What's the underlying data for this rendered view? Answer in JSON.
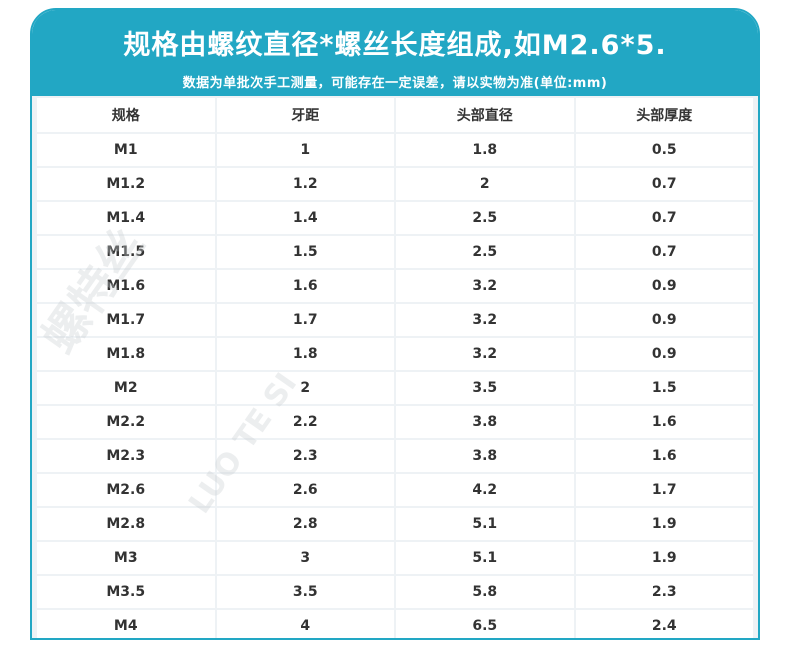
{
  "header": {
    "title": "规格由螺纹直径*螺丝长度组成,如M2.6*5.",
    "subtitle": "数据为单批次手工测量，可能存在一定误差，请以实物为准(单位:mm)"
  },
  "watermark": {
    "brand": "螺特丝",
    "brand_latin": "LUO TE SI"
  },
  "table": {
    "columns": [
      "规格",
      "牙距",
      "头部直径",
      "头部厚度"
    ],
    "rows": [
      [
        "M1",
        "1",
        "1.8",
        "0.5"
      ],
      [
        "M1.2",
        "1.2",
        "2",
        "0.7"
      ],
      [
        "M1.4",
        "1.4",
        "2.5",
        "0.7"
      ],
      [
        "M1.5",
        "1.5",
        "2.5",
        "0.7"
      ],
      [
        "M1.6",
        "1.6",
        "3.2",
        "0.9"
      ],
      [
        "M1.7",
        "1.7",
        "3.2",
        "0.9"
      ],
      [
        "M1.8",
        "1.8",
        "3.2",
        "0.9"
      ],
      [
        "M2",
        "2",
        "3.5",
        "1.5"
      ],
      [
        "M2.2",
        "2.2",
        "3.8",
        "1.6"
      ],
      [
        "M2.3",
        "2.3",
        "3.8",
        "1.6"
      ],
      [
        "M2.6",
        "2.6",
        "4.2",
        "1.7"
      ],
      [
        "M2.8",
        "2.8",
        "5.1",
        "1.9"
      ],
      [
        "M3",
        "3",
        "5.1",
        "1.9"
      ],
      [
        "M3.5",
        "3.5",
        "5.8",
        "2.3"
      ],
      [
        "M4",
        "4",
        "6.5",
        "2.4"
      ]
    ]
  },
  "colors": {
    "accent": "#22a7c4",
    "grid": "#eef2f5"
  }
}
